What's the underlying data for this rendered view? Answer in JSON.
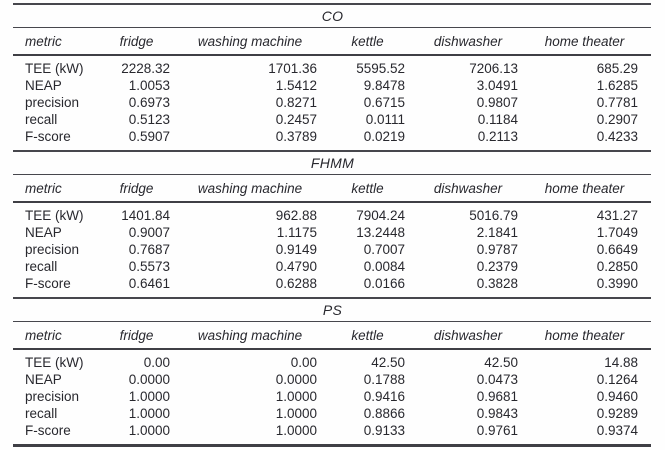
{
  "colors": {
    "text": "#28282e",
    "rule": "#47474d",
    "background": "#fefefe"
  },
  "tables": [
    {
      "title": "CO",
      "columns": [
        "metric",
        "fridge",
        "washing machine",
        "kettle",
        "dishwasher",
        "home theater"
      ],
      "rows": [
        {
          "metric": "TEE (kW)",
          "values": [
            "2228.32",
            "1701.36",
            "5595.52",
            "7206.13",
            "685.29"
          ]
        },
        {
          "metric": "NEAP",
          "values": [
            "1.0053",
            "1.5412",
            "9.8478",
            "3.0491",
            "1.6285"
          ]
        },
        {
          "metric": "precision",
          "values": [
            "0.6973",
            "0.8271",
            "0.6715",
            "0.9807",
            "0.7781"
          ]
        },
        {
          "metric": "recall",
          "values": [
            "0.5123",
            "0.2457",
            "0.0111",
            "0.1184",
            "0.2907"
          ]
        },
        {
          "metric": "F-score",
          "values": [
            "0.5907",
            "0.3789",
            "0.0219",
            "0.2113",
            "0.4233"
          ]
        }
      ]
    },
    {
      "title": "FHMM",
      "columns": [
        "metric",
        "fridge",
        "washing machine",
        "kettle",
        "dishwasher",
        "home theater"
      ],
      "rows": [
        {
          "metric": "TEE (kW)",
          "values": [
            "1401.84",
            "962.88",
            "7904.24",
            "5016.79",
            "431.27"
          ]
        },
        {
          "metric": "NEAP",
          "values": [
            "0.9007",
            "1.1175",
            "13.2448",
            "2.1841",
            "1.7049"
          ]
        },
        {
          "metric": "precision",
          "values": [
            "0.7687",
            "0.9149",
            "0.7007",
            "0.9787",
            "0.6649"
          ]
        },
        {
          "metric": "recall",
          "values": [
            "0.5573",
            "0.4790",
            "0.0084",
            "0.2379",
            "0.2850"
          ]
        },
        {
          "metric": "F-score",
          "values": [
            "0.6461",
            "0.6288",
            "0.0166",
            "0.3828",
            "0.3990"
          ]
        }
      ]
    },
    {
      "title": "PS",
      "columns": [
        "metric",
        "fridge",
        "washing machine",
        "kettle",
        "dishwasher",
        "home theater"
      ],
      "rows": [
        {
          "metric": "TEE (kW)",
          "values": [
            "0.00",
            "0.00",
            "42.50",
            "42.50",
            "14.88"
          ]
        },
        {
          "metric": "NEAP",
          "values": [
            "0.0000",
            "0.0000",
            "0.1788",
            "0.0473",
            "0.1264"
          ]
        },
        {
          "metric": "precision",
          "values": [
            "1.0000",
            "1.0000",
            "0.9416",
            "0.9681",
            "0.9460"
          ]
        },
        {
          "metric": "recall",
          "values": [
            "1.0000",
            "1.0000",
            "0.8866",
            "0.9843",
            "0.9289"
          ]
        },
        {
          "metric": "F-score",
          "values": [
            "1.0000",
            "1.0000",
            "0.9133",
            "0.9761",
            "0.9374"
          ]
        }
      ]
    }
  ]
}
